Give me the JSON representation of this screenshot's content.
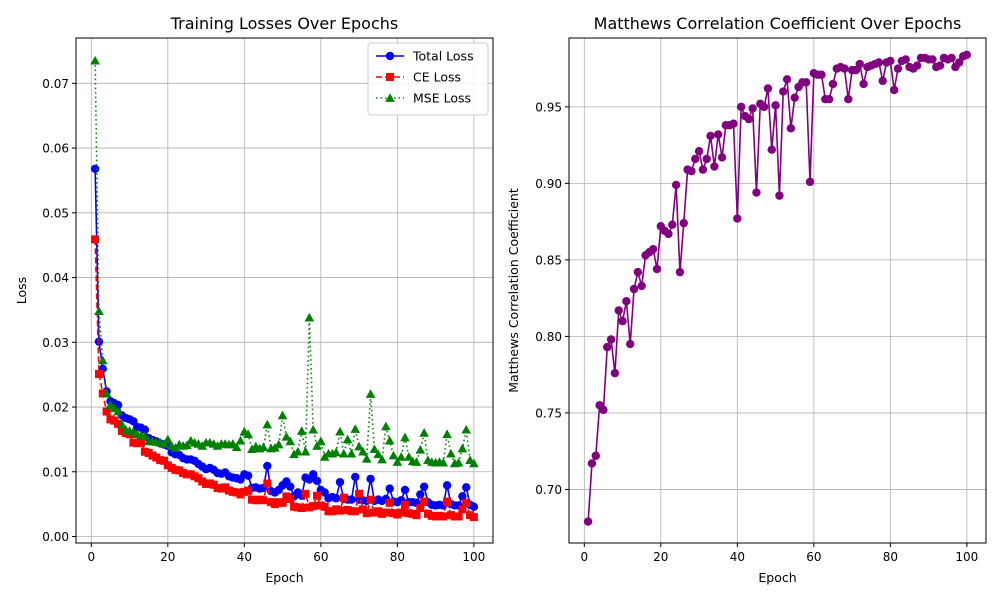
{
  "chart_data": [
    {
      "type": "line",
      "title": "Training Losses Over Epochs",
      "xlabel": "Epoch",
      "ylabel": "Loss",
      "xlim": [
        -4,
        105
      ],
      "ylim": [
        -0.001,
        0.077
      ],
      "xticks": [
        0,
        20,
        40,
        60,
        80,
        100
      ],
      "xtick_labels": [
        "0",
        "20",
        "40",
        "60",
        "80",
        "100"
      ],
      "yticks": [
        0.0,
        0.01,
        0.02,
        0.03,
        0.04,
        0.05,
        0.06,
        0.07
      ],
      "ytick_labels": [
        "0.00",
        "0.01",
        "0.02",
        "0.03",
        "0.04",
        "0.05",
        "0.06",
        "0.07"
      ],
      "grid": true,
      "legend_position": "top-right",
      "series": [
        {
          "name": "Total Loss",
          "color": "#0000ff",
          "marker": "circle",
          "linestyle": "solid",
          "x": [
            1,
            2,
            3,
            4,
            5,
            6,
            7,
            8,
            9,
            10,
            11,
            12,
            13,
            14,
            15,
            16,
            17,
            18,
            19,
            20,
            21,
            22,
            23,
            24,
            25,
            26,
            27,
            28,
            29,
            30,
            31,
            32,
            33,
            34,
            35,
            36,
            37,
            38,
            39,
            40,
            41,
            42,
            43,
            44,
            45,
            46,
            47,
            48,
            49,
            50,
            51,
            52,
            53,
            54,
            55,
            56,
            57,
            58,
            59,
            60,
            61,
            62,
            63,
            64,
            65,
            66,
            67,
            68,
            69,
            70,
            71,
            72,
            73,
            74,
            75,
            76,
            77,
            78,
            79,
            80,
            81,
            82,
            83,
            84,
            85,
            86,
            87,
            88,
            89,
            90,
            91,
            92,
            93,
            94,
            95,
            96,
            97,
            98,
            99,
            100
          ],
          "y": [
            0.0568,
            0.0301,
            0.0259,
            0.0224,
            0.0209,
            0.0206,
            0.0203,
            0.0187,
            0.0183,
            0.0181,
            0.0178,
            0.0169,
            0.0168,
            0.0165,
            0.0152,
            0.0149,
            0.0147,
            0.0144,
            0.0142,
            0.014,
            0.013,
            0.0127,
            0.0126,
            0.0121,
            0.0119,
            0.0119,
            0.0117,
            0.0112,
            0.0108,
            0.0104,
            0.0106,
            0.0103,
            0.0098,
            0.0097,
            0.0099,
            0.0093,
            0.0091,
            0.009,
            0.0088,
            0.0096,
            0.0094,
            0.0075,
            0.0076,
            0.0074,
            0.0075,
            0.0109,
            0.007,
            0.0068,
            0.0072,
            0.0079,
            0.0085,
            0.0077,
            0.0062,
            0.0068,
            0.0063,
            0.0091,
            0.0088,
            0.0096,
            0.0086,
            0.0072,
            0.0068,
            0.0059,
            0.0061,
            0.0059,
            0.0084,
            0.0058,
            0.0057,
            0.0057,
            0.0092,
            0.0057,
            0.0056,
            0.0055,
            0.0089,
            0.0055,
            0.0057,
            0.0055,
            0.0058,
            0.0074,
            0.0054,
            0.0053,
            0.0056,
            0.0072,
            0.0053,
            0.0053,
            0.0052,
            0.0065,
            0.0077,
            0.0053,
            0.0049,
            0.0048,
            0.0049,
            0.0048,
            0.0079,
            0.005,
            0.0048,
            0.0048,
            0.0062,
            0.0076,
            0.0049,
            0.0046
          ]
        },
        {
          "name": "CE Loss",
          "color": "#ff0000",
          "marker": "square",
          "linestyle": "dashed",
          "x": [
            1,
            2,
            3,
            4,
            5,
            6,
            7,
            8,
            9,
            10,
            11,
            12,
            13,
            14,
            15,
            16,
            17,
            18,
            19,
            20,
            21,
            22,
            23,
            24,
            25,
            26,
            27,
            28,
            29,
            30,
            31,
            32,
            33,
            34,
            35,
            36,
            37,
            38,
            39,
            40,
            41,
            42,
            43,
            44,
            45,
            46,
            47,
            48,
            49,
            50,
            51,
            52,
            53,
            54,
            55,
            56,
            57,
            58,
            59,
            60,
            61,
            62,
            63,
            64,
            65,
            66,
            67,
            68,
            69,
            70,
            71,
            72,
            73,
            74,
            75,
            76,
            77,
            78,
            79,
            80,
            81,
            82,
            83,
            84,
            85,
            86,
            87,
            88,
            89,
            90,
            91,
            92,
            93,
            94,
            95,
            96,
            97,
            98,
            99,
            100
          ],
          "y": [
            0.0459,
            0.0251,
            0.0221,
            0.0193,
            0.0181,
            0.0179,
            0.0174,
            0.0163,
            0.016,
            0.0158,
            0.0145,
            0.0144,
            0.0145,
            0.0131,
            0.0129,
            0.0125,
            0.0122,
            0.0118,
            0.0117,
            0.011,
            0.0106,
            0.0103,
            0.0102,
            0.0098,
            0.0096,
            0.0096,
            0.0093,
            0.009,
            0.0085,
            0.0081,
            0.0082,
            0.008,
            0.0075,
            0.0074,
            0.0076,
            0.0071,
            0.0069,
            0.0068,
            0.0065,
            0.0069,
            0.0071,
            0.0057,
            0.0056,
            0.0057,
            0.0056,
            0.0082,
            0.0053,
            0.005,
            0.0053,
            0.0052,
            0.0062,
            0.0058,
            0.0046,
            0.0045,
            0.0044,
            0.0066,
            0.0045,
            0.0047,
            0.0063,
            0.0048,
            0.0046,
            0.0039,
            0.0039,
            0.0042,
            0.004,
            0.006,
            0.0041,
            0.0039,
            0.0039,
            0.0066,
            0.0042,
            0.0036,
            0.0057,
            0.0037,
            0.0039,
            0.0035,
            0.0037,
            0.0052,
            0.0036,
            0.0034,
            0.0037,
            0.0049,
            0.0036,
            0.0035,
            0.0033,
            0.0044,
            0.0054,
            0.0035,
            0.0032,
            0.0031,
            0.0032,
            0.0031,
            0.0054,
            0.0033,
            0.0031,
            0.0031,
            0.0042,
            0.0052,
            0.0033,
            0.003
          ]
        },
        {
          "name": "MSE Loss",
          "color": "#008000",
          "marker": "triangle",
          "linestyle": "dotted",
          "x": [
            1,
            2,
            3,
            4,
            5,
            6,
            7,
            8,
            9,
            10,
            11,
            12,
            13,
            14,
            15,
            16,
            17,
            18,
            19,
            20,
            21,
            22,
            23,
            24,
            25,
            26,
            27,
            28,
            29,
            30,
            31,
            32,
            33,
            34,
            35,
            36,
            37,
            38,
            39,
            40,
            41,
            42,
            43,
            44,
            45,
            46,
            47,
            48,
            49,
            50,
            51,
            52,
            53,
            54,
            55,
            56,
            57,
            58,
            59,
            60,
            61,
            62,
            63,
            64,
            65,
            66,
            67,
            68,
            69,
            70,
            71,
            72,
            73,
            74,
            75,
            76,
            77,
            78,
            79,
            80,
            81,
            82,
            83,
            84,
            85,
            86,
            87,
            88,
            89,
            90,
            91,
            92,
            93,
            94,
            95,
            96,
            97,
            98,
            99,
            100
          ],
          "y": [
            0.0735,
            0.0348,
            0.0272,
            0.0221,
            0.0203,
            0.0198,
            0.0193,
            0.0173,
            0.0165,
            0.0163,
            0.0162,
            0.0158,
            0.0156,
            0.0155,
            0.0147,
            0.0147,
            0.0146,
            0.0145,
            0.0143,
            0.015,
            0.014,
            0.0137,
            0.0142,
            0.014,
            0.0141,
            0.0148,
            0.0145,
            0.0143,
            0.014,
            0.0145,
            0.0145,
            0.0143,
            0.014,
            0.0143,
            0.0143,
            0.0142,
            0.0143,
            0.0138,
            0.0148,
            0.0162,
            0.0158,
            0.0135,
            0.0139,
            0.0136,
            0.0138,
            0.0173,
            0.0136,
            0.0137,
            0.0142,
            0.0187,
            0.0154,
            0.0147,
            0.0127,
            0.0131,
            0.0163,
            0.0131,
            0.0338,
            0.0165,
            0.014,
            0.0147,
            0.0123,
            0.0128,
            0.0128,
            0.013,
            0.0162,
            0.0128,
            0.015,
            0.0128,
            0.0166,
            0.0139,
            0.0131,
            0.012,
            0.022,
            0.0135,
            0.0127,
            0.0119,
            0.017,
            0.0148,
            0.0125,
            0.0115,
            0.0123,
            0.0153,
            0.0123,
            0.0116,
            0.0115,
            0.0134,
            0.016,
            0.0118,
            0.0115,
            0.0114,
            0.0115,
            0.0114,
            0.0158,
            0.0128,
            0.0113,
            0.0114,
            0.0136,
            0.0165,
            0.0118,
            0.0113
          ]
        }
      ]
    },
    {
      "type": "line",
      "title": "Matthews Correlation Coefficient Over Epochs",
      "xlabel": "Epoch",
      "ylabel": "Matthews Correlation Coefficient",
      "xlim": [
        -4,
        105
      ],
      "ylim": [
        0.665,
        0.995
      ],
      "xticks": [
        0,
        20,
        40,
        60,
        80,
        100
      ],
      "xtick_labels": [
        "0",
        "20",
        "40",
        "60",
        "80",
        "100"
      ],
      "yticks": [
        0.7,
        0.75,
        0.8,
        0.85,
        0.9,
        0.95
      ],
      "ytick_labels": [
        "0.70",
        "0.75",
        "0.80",
        "0.85",
        "0.90",
        "0.95"
      ],
      "grid": true,
      "series": [
        {
          "color": "#800080",
          "marker": "circle",
          "linestyle": "solid",
          "x": [
            1,
            2,
            3,
            4,
            5,
            6,
            7,
            8,
            9,
            10,
            11,
            12,
            13,
            14,
            15,
            16,
            17,
            18,
            19,
            20,
            21,
            22,
            23,
            24,
            25,
            26,
            27,
            28,
            29,
            30,
            31,
            32,
            33,
            34,
            35,
            36,
            37,
            38,
            39,
            40,
            41,
            42,
            43,
            44,
            45,
            46,
            47,
            48,
            49,
            50,
            51,
            52,
            53,
            54,
            55,
            56,
            57,
            58,
            59,
            60,
            61,
            62,
            63,
            64,
            65,
            66,
            67,
            68,
            69,
            70,
            71,
            72,
            73,
            74,
            75,
            76,
            77,
            78,
            79,
            80,
            81,
            82,
            83,
            84,
            85,
            86,
            87,
            88,
            89,
            90,
            91,
            92,
            93,
            94,
            95,
            96,
            97,
            98,
            99,
            100
          ],
          "y": [
            0.679,
            0.717,
            0.722,
            0.755,
            0.752,
            0.793,
            0.798,
            0.776,
            0.817,
            0.81,
            0.823,
            0.795,
            0.831,
            0.842,
            0.833,
            0.853,
            0.855,
            0.857,
            0.844,
            0.872,
            0.869,
            0.867,
            0.873,
            0.899,
            0.842,
            0.874,
            0.909,
            0.908,
            0.916,
            0.921,
            0.909,
            0.916,
            0.931,
            0.911,
            0.932,
            0.917,
            0.938,
            0.938,
            0.939,
            0.877,
            0.95,
            0.944,
            0.942,
            0.949,
            0.894,
            0.952,
            0.95,
            0.962,
            0.922,
            0.951,
            0.892,
            0.96,
            0.968,
            0.936,
            0.956,
            0.963,
            0.966,
            0.966,
            0.901,
            0.972,
            0.971,
            0.971,
            0.955,
            0.955,
            0.965,
            0.975,
            0.976,
            0.975,
            0.955,
            0.974,
            0.974,
            0.978,
            0.965,
            0.976,
            0.977,
            0.978,
            0.979,
            0.967,
            0.979,
            0.98,
            0.961,
            0.975,
            0.98,
            0.981,
            0.976,
            0.975,
            0.977,
            0.982,
            0.982,
            0.981,
            0.981,
            0.976,
            0.977,
            0.982,
            0.981,
            0.982,
            0.976,
            0.979,
            0.983,
            0.984
          ]
        }
      ]
    }
  ]
}
